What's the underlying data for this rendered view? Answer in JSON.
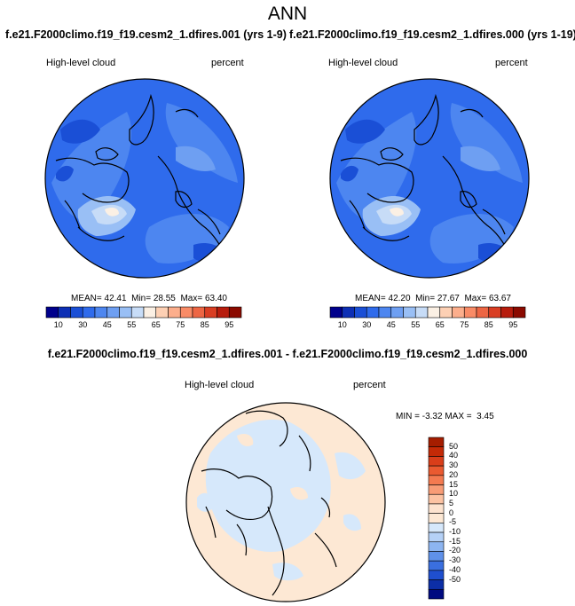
{
  "title": "ANN",
  "subtitles": {
    "left": "f.e21.F2000climo.f19_f19.cesm2_1.dfires.001 (yrs 1-9)",
    "right": "f.e21.F2000climo.f19_f19.cesm2_1.dfires.000 (yrs 1-19)",
    "diff": "f.e21.F2000climo.f19_f19.cesm2_1.dfires.001 - f.e21.F2000climo.f19_f19.cesm2_1.dfires.000"
  },
  "chart_data": [
    {
      "type": "polar-contour-map",
      "variable": "High-level cloud",
      "units": "percent",
      "stats": {
        "mean_label": "MEAN=",
        "mean": "42.41",
        "min_label": "Min=",
        "min": "28.55",
        "max_label": "Max=",
        "max": "63.40"
      },
      "colorbar": {
        "levels": [
          5,
          10,
          20,
          30,
          40,
          45,
          50,
          55,
          60,
          65,
          70,
          75,
          80,
          85,
          90,
          95
        ],
        "tick_labels": [
          "10",
          "30",
          "45",
          "55",
          "65",
          "75",
          "85",
          "95"
        ],
        "colors": [
          "#00008c",
          "#0d2fb5",
          "#1a4fd6",
          "#2f6bec",
          "#4d86f0",
          "#6e9ff2",
          "#99bff5",
          "#c7dcf7",
          "#fbf0e4",
          "#fdd0b4",
          "#fcae8c",
          "#f98b66",
          "#ed6644",
          "#d93e23",
          "#b71c0d",
          "#8b0a00"
        ]
      }
    },
    {
      "type": "polar-contour-map",
      "variable": "High-level cloud",
      "units": "percent",
      "stats": {
        "mean_label": "MEAN=",
        "mean": "42.20",
        "min_label": "Min=",
        "min": "27.67",
        "max_label": "Max=",
        "max": "63.67"
      },
      "colorbar": {
        "levels": [
          5,
          10,
          20,
          30,
          40,
          45,
          50,
          55,
          60,
          65,
          70,
          75,
          80,
          85,
          90,
          95
        ],
        "tick_labels": [
          "10",
          "30",
          "45",
          "55",
          "65",
          "75",
          "85",
          "95"
        ],
        "colors": [
          "#00008c",
          "#0d2fb5",
          "#1a4fd6",
          "#2f6bec",
          "#4d86f0",
          "#6e9ff2",
          "#99bff5",
          "#c7dcf7",
          "#fbf0e4",
          "#fdd0b4",
          "#fcae8c",
          "#f98b66",
          "#ed6644",
          "#d93e23",
          "#b71c0d",
          "#8b0a00"
        ]
      }
    },
    {
      "type": "polar-contour-map",
      "variable": "High-level cloud",
      "units": "percent",
      "stats": {
        "min_label": "MIN =",
        "min": "-3.32",
        "max_label": "MAX =",
        "max": "3.45"
      },
      "colorbar": {
        "tick_labels": [
          "50",
          "40",
          "30",
          "20",
          "15",
          "10",
          "5",
          "0",
          "-5",
          "-10",
          "-15",
          "-20",
          "-30",
          "-40",
          "-50"
        ],
        "colors": [
          "#a51d00",
          "#c42a07",
          "#d93e1a",
          "#ea5a30",
          "#f47a50",
          "#f89c76",
          "#fcc3a3",
          "#fde3cf",
          "#fde8d4",
          "#d6e8fb",
          "#b5d1f7",
          "#8db5f1",
          "#5f91ea",
          "#3a6fe0",
          "#1f4fcf",
          "#0c2ea6",
          "#000a80"
        ]
      }
    }
  ]
}
